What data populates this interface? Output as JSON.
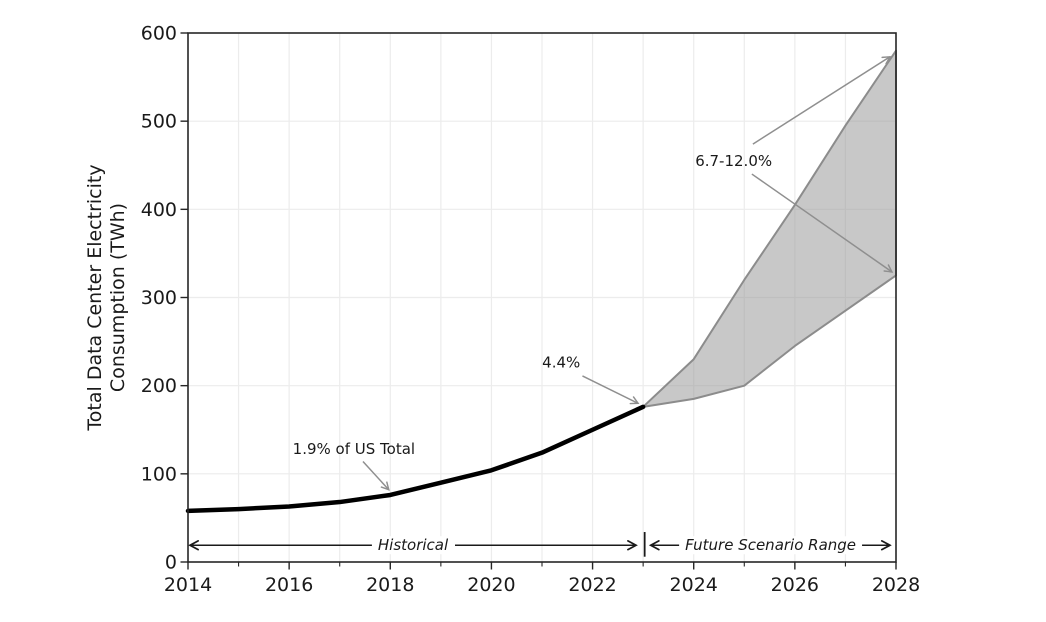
{
  "chart_data": {
    "type": "line",
    "title": "",
    "xlabel": "",
    "ylabel": "Total Data Center Electricity Consumption (TWh)",
    "ylabel_lines": [
      "Total Data Center Electricity",
      "Consumption (TWh)"
    ],
    "xlim": [
      2014,
      2028
    ],
    "ylim": [
      0,
      600
    ],
    "grid": true,
    "legend": "none",
    "x_major_ticks": [
      2014,
      2016,
      2018,
      2020,
      2022,
      2024,
      2026,
      2028
    ],
    "x_minor_ticks": [
      2015,
      2017,
      2019,
      2021,
      2023,
      2025,
      2027
    ],
    "y_ticks": [
      0,
      100,
      200,
      300,
      400,
      500,
      600
    ],
    "series": [
      {
        "name": "Historical",
        "kind": "line",
        "x": [
          2014,
          2015,
          2016,
          2017,
          2018,
          2019,
          2020,
          2021,
          2022,
          2023
        ],
        "values": [
          58,
          60,
          63,
          68,
          76,
          90,
          104,
          124,
          150,
          176
        ]
      },
      {
        "name": "Future Scenario Range",
        "kind": "band",
        "x": [
          2023,
          2024,
          2025,
          2026,
          2027,
          2028
        ],
        "low": [
          176,
          185,
          200,
          245,
          285,
          325
        ],
        "high": [
          176,
          230,
          320,
          405,
          495,
          580
        ]
      }
    ],
    "annotations": [
      {
        "id": "pct-2018",
        "text": "1.9% of US Total",
        "text_x": 2017.28,
        "text_y": 128,
        "arrows": [
          {
            "from": [
              2017.46,
              114
            ],
            "to": [
              2017.97,
              82
            ]
          }
        ]
      },
      {
        "id": "pct-2023",
        "text": "4.4%",
        "text_x": 2021.38,
        "text_y": 226,
        "arrows": [
          {
            "from": [
              2021.8,
              211
            ],
            "to": [
              2022.9,
              180
            ]
          }
        ]
      },
      {
        "id": "pct-2028",
        "text": "6.7-12.0%",
        "text_x": 2024.79,
        "text_y": 455,
        "arrows": [
          {
            "from": [
              2025.17,
              474
            ],
            "to": [
              2027.88,
              573
            ]
          },
          {
            "from": [
              2025.15,
              440
            ],
            "to": [
              2027.92,
              329
            ]
          }
        ]
      }
    ],
    "range_labels": [
      {
        "id": "historical-range",
        "text": "Historical",
        "x0": 2014.04,
        "x1": 2022.86,
        "y": 19,
        "text_x": 2018.45
      },
      {
        "id": "future-range",
        "text": "Future Scenario Range",
        "x0": 2023.15,
        "x1": 2027.88,
        "y": 19,
        "text_x": 2025.52
      }
    ],
    "divider": {
      "x": 2023.03,
      "y0": 34,
      "y1": 6
    },
    "colors": {
      "historical_line": "#000000",
      "band_fill": "rgba(145,145,145,0.5)",
      "band_edge": "#8c8c8c",
      "grid": "#ececec",
      "spine": "#262626",
      "annotation_arrow": "#8f8f8f",
      "range_arrow": "#1a1a1a",
      "text": "#1a1a1a",
      "background": "#ffffff"
    }
  }
}
